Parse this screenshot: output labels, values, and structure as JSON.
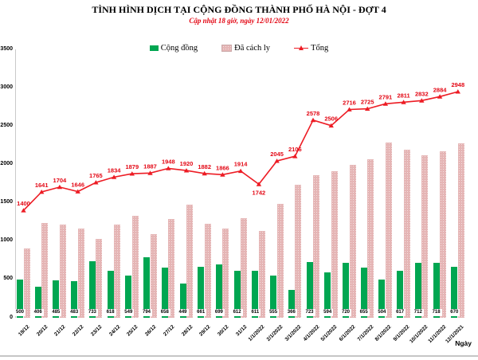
{
  "header": {
    "title": "TÌNH HÌNH DỊCH TẠI CỘNG ĐỒNG THÀNH PHỐ HÀ NỘI - ĐỢT 4",
    "subtitle": "Cập nhật 18 giờ, ngày 12/01/2022"
  },
  "legend": {
    "community_label": "Cộng đồng",
    "quarantine_label": "Đã cách ly",
    "total_label": "Tổng"
  },
  "axis": {
    "x_title": "Ngày",
    "yticks": [
      0,
      500,
      1000,
      1500,
      2000,
      2500,
      3000,
      3500
    ]
  },
  "colors": {
    "community_green": "#00a651",
    "quarantine_pink_base": "#e5b5b5",
    "quarantine_pink_dot": "#f4e0e0",
    "total_red": "#ed1c24",
    "label_red": "#e30613",
    "axis_gray": "#c9c9c9"
  },
  "chart_data": {
    "type": "bar",
    "title": "TÌNH HÌNH DỊCH TẠI CỘNG ĐỒNG THÀNH PHỐ HÀ NỘI - ĐỢT 4",
    "subtitle": "Cập nhật 18 giờ, ngày 12/01/2022",
    "xlabel": "Ngày",
    "ylabel": "",
    "ylim": [
      0,
      3500
    ],
    "grid": false,
    "legend_position": "top",
    "categories": [
      "19/12",
      "20/12",
      "21/12",
      "22/12",
      "23/12",
      "24/12",
      "25/12",
      "26/12",
      "27/12",
      "28/12",
      "29/12",
      "30/12",
      "31/12",
      "1/1/2022",
      "2/1/2022",
      "3/1/2022",
      "4/1/2022",
      "5/1/2022",
      "6/1/2022",
      "7/1/2022",
      "8/1/2022",
      "9/1/2022",
      "10/1/2022",
      "11/1/2022",
      "12/1/2021"
    ],
    "series": [
      {
        "name": "Cộng đồng",
        "type": "bar",
        "color": "#00a651",
        "values": [
          500,
          406,
          485,
          483,
          733,
          618,
          549,
          794,
          658,
          449,
          661,
          699,
          612,
          611,
          555,
          366,
          723,
          594,
          720,
          655,
          504,
          617,
          712,
          718,
          670
        ]
      },
      {
        "name": "Đã cách ly",
        "type": "bar",
        "color": "#e5b5b5",
        "values": [
          900,
          1235,
          1219,
          1163,
          1032,
          1216,
          1330,
          1093,
          1290,
          1471,
          1221,
          1167,
          1302,
          1131,
          1490,
          1740,
          1855,
          1912,
          1996,
          2070,
          2287,
          2194,
          2120,
          2166,
          2278
        ]
      },
      {
        "name": "Tổng",
        "type": "line",
        "color": "#ed1c24",
        "values": [
          1400,
          1641,
          1704,
          1646,
          1765,
          1834,
          1879,
          1887,
          1948,
          1920,
          1882,
          1866,
          1914,
          1742,
          2045,
          2106,
          2578,
          2506,
          2716,
          2725,
          2791,
          2811,
          2832,
          2884,
          2948
        ],
        "label_below_indices": [
          13
        ]
      }
    ]
  }
}
